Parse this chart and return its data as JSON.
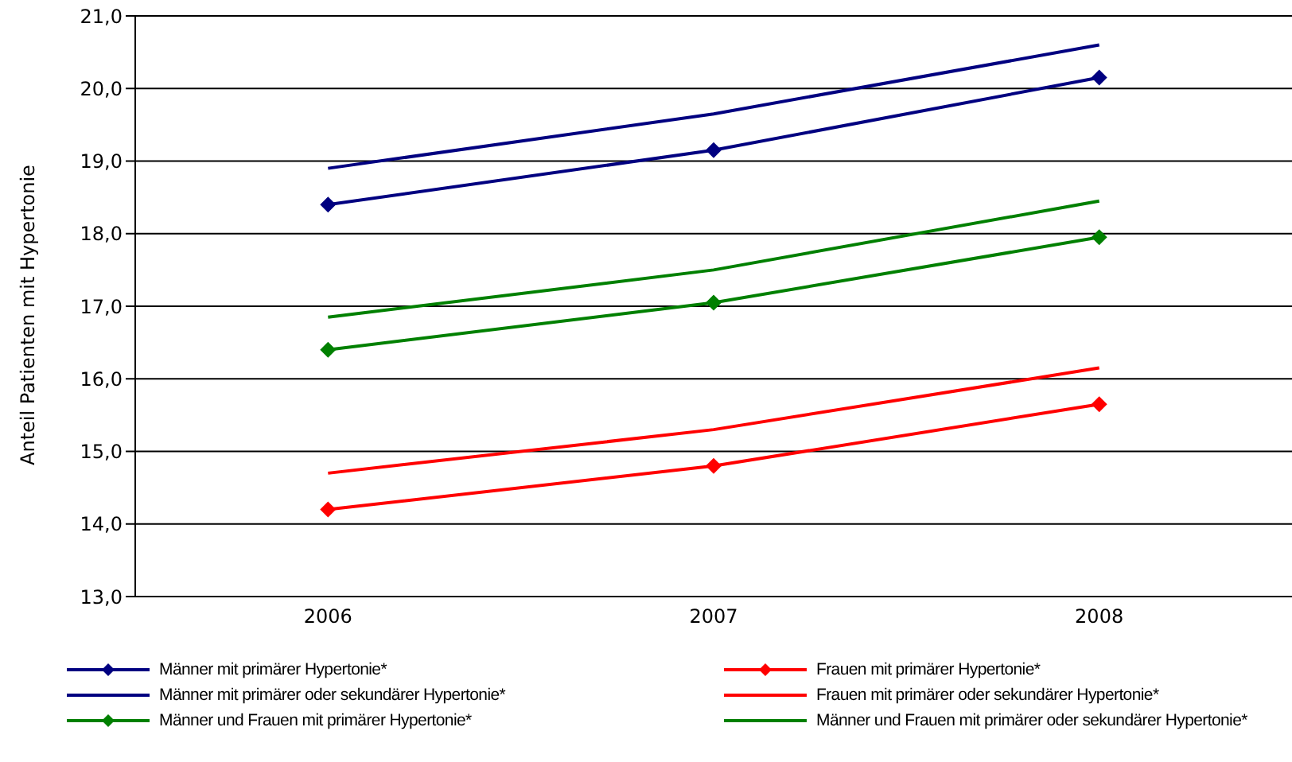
{
  "chart_data": {
    "type": "line",
    "ylabel": "Anteil Patienten mit Hypertonie",
    "categories": [
      "2006",
      "2007",
      "2008"
    ],
    "ylim": [
      13,
      21
    ],
    "yticks": [
      {
        "value": 13,
        "label": "13,0"
      },
      {
        "value": 14,
        "label": "14,0"
      },
      {
        "value": 15,
        "label": "15,0"
      },
      {
        "value": 16,
        "label": "16,0"
      },
      {
        "value": 17,
        "label": "17,0"
      },
      {
        "value": 18,
        "label": "18,0"
      },
      {
        "value": 19,
        "label": "19,0"
      },
      {
        "value": 20,
        "label": "20,0"
      },
      {
        "value": 21,
        "label": "21,0"
      }
    ],
    "grid": "y",
    "legend": "bottom",
    "series": [
      {
        "name": "Männer mit primärer Hypertonie*",
        "color": "#000080",
        "marker": "diamond",
        "values": [
          18.4,
          19.15,
          20.15
        ]
      },
      {
        "name": "Frauen mit primärer Hypertonie*",
        "color": "#ff0000",
        "marker": "diamond",
        "values": [
          14.2,
          14.8,
          15.65
        ]
      },
      {
        "name": "Männer mit primärer oder sekundärer Hypertonie*",
        "color": "#000080",
        "marker": "none",
        "values": [
          18.9,
          19.65,
          20.6
        ]
      },
      {
        "name": "Frauen mit primärer oder sekundärer Hypertonie*",
        "color": "#ff0000",
        "marker": "none",
        "values": [
          14.7,
          15.3,
          16.15
        ]
      },
      {
        "name": "Männer und Frauen mit primärer Hypertonie*",
        "color": "#008000",
        "marker": "diamond",
        "values": [
          16.4,
          17.05,
          17.95
        ]
      },
      {
        "name": "Männer und Frauen mit primärer oder sekundärer Hypertonie*",
        "color": "#008000",
        "marker": "none",
        "values": [
          16.85,
          17.5,
          18.45
        ]
      }
    ]
  }
}
